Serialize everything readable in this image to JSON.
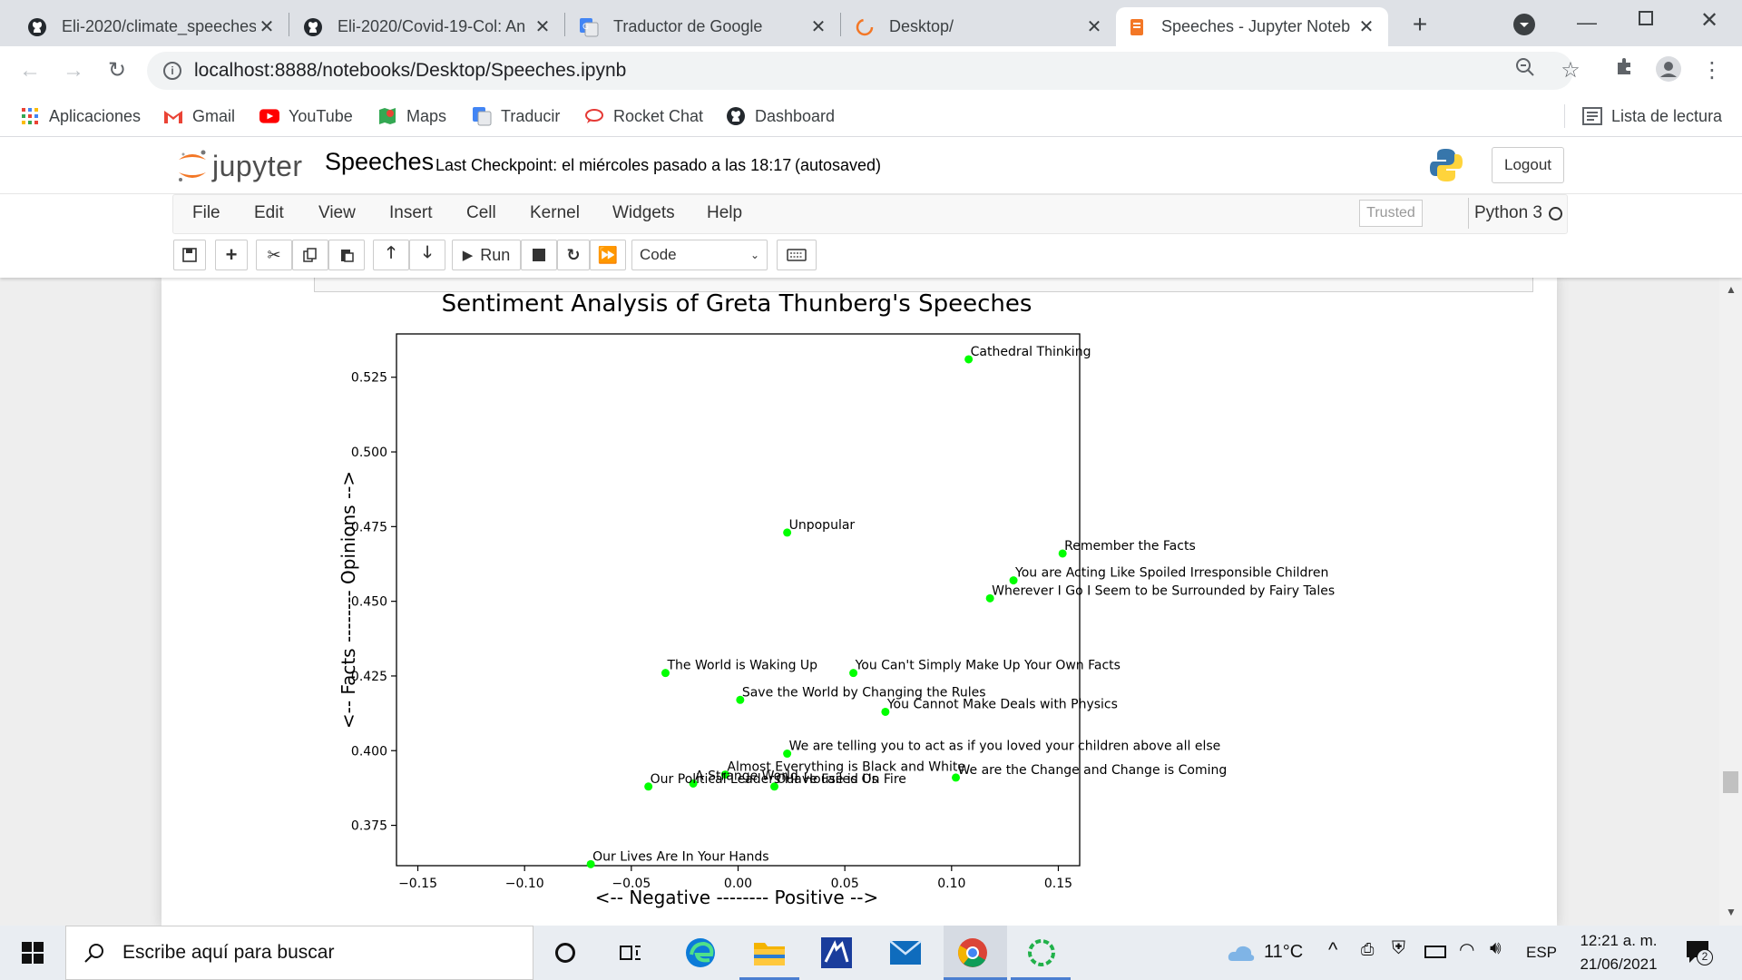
{
  "browser": {
    "tabs": [
      {
        "title": "Eli-2020/climate_speeches",
        "icon": "github-icon"
      },
      {
        "title": "Eli-2020/Covid-19-Col: An",
        "icon": "github-icon"
      },
      {
        "title": "Traductor de Google",
        "icon": "google-translate-icon"
      },
      {
        "title": "Desktop/",
        "icon": "jupyter-loading-icon"
      },
      {
        "title": "Speeches - Jupyter Noteb",
        "icon": "jupyter-icon",
        "active": true
      }
    ],
    "url": "localhost:8888/notebooks/Desktop/Speeches.ipynb",
    "bookmarks": [
      {
        "label": "Aplicaciones",
        "icon": "apps-grid-icon"
      },
      {
        "label": "Gmail",
        "icon": "gmail-icon"
      },
      {
        "label": "YouTube",
        "icon": "youtube-icon"
      },
      {
        "label": "Maps",
        "icon": "maps-icon"
      },
      {
        "label": "Traducir",
        "icon": "translate-icon"
      },
      {
        "label": "Rocket Chat",
        "icon": "rocket-chat-icon"
      },
      {
        "label": "Dashboard",
        "icon": "github-icon"
      }
    ],
    "reading_list": "Lista de lectura"
  },
  "jupyter": {
    "logo_text": "jupyter",
    "notebook_name": "Speeches",
    "checkpoint": "Last Checkpoint: el miércoles pasado a las 18:17",
    "autosave": "(autosaved)",
    "logout": "Logout",
    "menu": [
      "File",
      "Edit",
      "View",
      "Insert",
      "Cell",
      "Kernel",
      "Widgets",
      "Help"
    ],
    "trusted": "Trusted",
    "kernel": "Python 3",
    "run_label": "Run",
    "cell_type": "Code"
  },
  "chart_data": {
    "type": "scatter",
    "title": "Sentiment Analysis of Greta Thunberg's Speeches",
    "xlabel": "<-- Negative -------- Positive -->",
    "ylabel": "<-- Facts -------- Opinions -->",
    "xlim": [
      -0.16,
      0.16
    ],
    "ylim": [
      0.3615,
      0.5395
    ],
    "xticks": [
      -0.15,
      -0.1,
      -0.05,
      0.0,
      0.05,
      0.1,
      0.15
    ],
    "xtick_labels": [
      "−0.15",
      "−0.10",
      "−0.05",
      "0.00",
      "0.05",
      "0.10",
      "0.15"
    ],
    "yticks": [
      0.375,
      0.4,
      0.425,
      0.45,
      0.475,
      0.5,
      0.525
    ],
    "ytick_labels": [
      "0.375",
      "0.400",
      "0.425",
      "0.450",
      "0.475",
      "0.500",
      "0.525"
    ],
    "marker_color": "#00ff00",
    "points": [
      {
        "label": "Cathedral Thinking",
        "x": 0.108,
        "y": 0.531
      },
      {
        "label": "Unpopular",
        "x": 0.023,
        "y": 0.473
      },
      {
        "label": "Remember the Facts",
        "x": 0.152,
        "y": 0.466
      },
      {
        "label": "You are Acting Like Spoiled Irresponsible Children",
        "x": 0.129,
        "y": 0.457
      },
      {
        "label": "Wherever I Go I Seem to be Surrounded by Fairy Tales",
        "x": 0.118,
        "y": 0.451
      },
      {
        "label": "The World is Waking Up",
        "x": -0.034,
        "y": 0.426
      },
      {
        "label": "You Can't Simply Make Up Your Own Facts",
        "x": 0.054,
        "y": 0.426
      },
      {
        "label": "Save the World by Changing the Rules",
        "x": 0.001,
        "y": 0.417
      },
      {
        "label": "You Cannot Make Deals with Physics",
        "x": 0.069,
        "y": 0.413
      },
      {
        "label": "We are telling you to act as if you loved your children above all else",
        "x": 0.023,
        "y": 0.399
      },
      {
        "label": "Almost Everything is Black and White",
        "x": -0.006,
        "y": 0.392
      },
      {
        "label": "We are the Change and Change is Coming",
        "x": 0.102,
        "y": 0.391
      },
      {
        "label": "A Strange World",
        "x": -0.021,
        "y": 0.389
      },
      {
        "label": "Our Political Leaders Have Failed Us",
        "x": -0.042,
        "y": 0.388
      },
      {
        "label": "Our House is On Fire",
        "x": 0.017,
        "y": 0.388
      },
      {
        "label": "Our Lives Are In Your Hands",
        "x": -0.069,
        "y": 0.362
      }
    ]
  },
  "taskbar": {
    "search_placeholder": "Escribe aquí para buscar",
    "temperature": "11°C",
    "language": "ESP",
    "time": "12:21 a. m.",
    "date": "21/06/2021",
    "notification_count": "2"
  }
}
